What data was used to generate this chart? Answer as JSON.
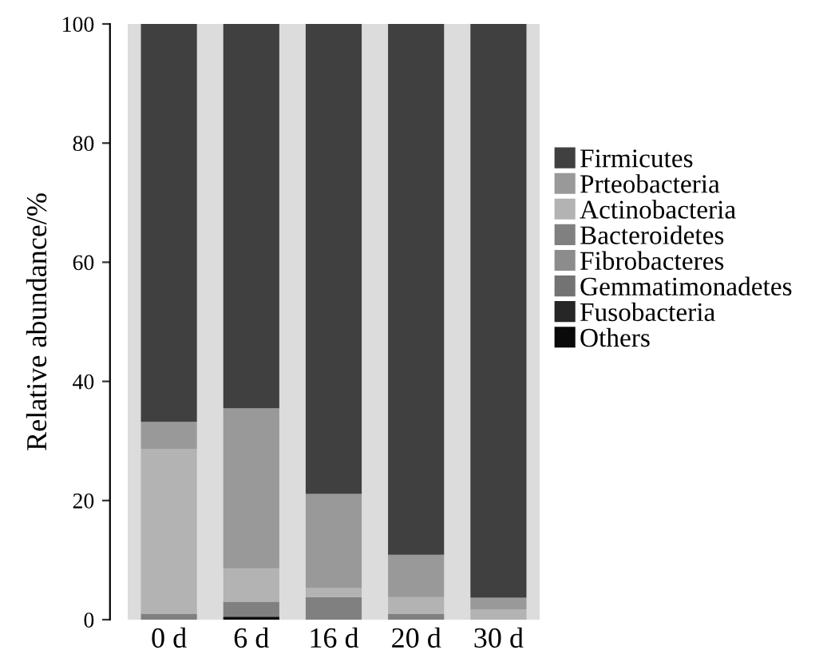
{
  "chart_data": {
    "type": "bar",
    "stacked": true,
    "ylabel": "Relative abundance/%",
    "categories": [
      "0 d",
      "6 d",
      "16 d",
      "20 d",
      "30 d"
    ],
    "ylim": [
      0,
      100
    ],
    "yticks": [
      0,
      20,
      40,
      60,
      80,
      100
    ],
    "grid": false,
    "legend": "right",
    "series": [
      {
        "name": "Others",
        "color": "#0a0a0a",
        "values": [
          0,
          0.5,
          0,
          0,
          0
        ]
      },
      {
        "name": "Fusobacteria",
        "color": "#262626",
        "values": [
          0,
          0,
          0,
          0,
          0
        ]
      },
      {
        "name": "Gemmatimonadetes",
        "color": "#737373",
        "values": [
          0,
          0,
          0,
          0,
          0
        ]
      },
      {
        "name": "Fibrobacteres",
        "color": "#8c8c8c",
        "values": [
          0,
          0,
          0,
          0,
          0
        ]
      },
      {
        "name": "Bacteroidetes",
        "color": "#808080",
        "values": [
          1.0,
          2.5,
          3.8,
          1.0,
          0
        ]
      },
      {
        "name": "Actinobacteria",
        "color": "#b3b3b3",
        "values": [
          27.7,
          5.6,
          1.5,
          2.8,
          1.7
        ]
      },
      {
        "name": "Prteobacteria",
        "color": "#999999",
        "values": [
          4.5,
          26.9,
          15.8,
          7.1,
          2.0
        ]
      },
      {
        "name": "Firmicutes",
        "color": "#404040",
        "values": [
          66.8,
          64.5,
          78.9,
          89.1,
          96.3
        ]
      }
    ]
  }
}
